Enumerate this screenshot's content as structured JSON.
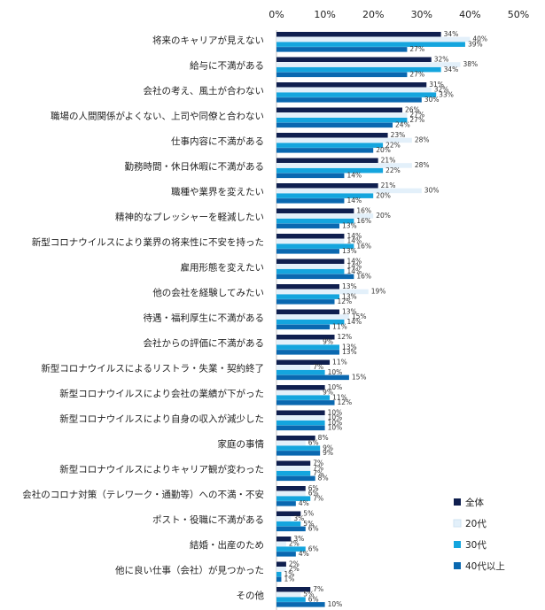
{
  "chart_data": {
    "type": "bar",
    "orientation": "horizontal",
    "xlim": [
      0,
      50
    ],
    "x_ticks": [
      "0%",
      "10%",
      "20%",
      "30%",
      "40%",
      "50%"
    ],
    "grid": false,
    "legend_position": "bottom-right",
    "categories": [
      "将来のキャリアが見えない",
      "給与に不満がある",
      "会社の考え、風土が合わない",
      "職場の人間関係がよくない、上司や同僚と合わない",
      "仕事内容に不満がある",
      "勤務時間・休日休暇に不満がある",
      "職種や業界を変えたい",
      "精神的なプレッシャーを軽減したい",
      "新型コロナウイルスにより業界の将来性に不安を持った",
      "雇用形態を変えたい",
      "他の会社を経験してみたい",
      "待遇・福利厚生に不満がある",
      "会社からの評価に不満がある",
      "新型コロナウイルスによるリストラ・失業・契約終了",
      "新型コロナウイルスにより会社の業績が下がった",
      "新型コロナウイルスにより自身の収入が減少した",
      "家庭の事情",
      "新型コロナウイルスによりキャリア観が変わった",
      "会社のコロナ対策（テレワーク・通勤等）への不満・不安",
      "ポスト・役職に不満がある",
      "結婚・出産のため",
      "他に良い仕事（会社）が見つかった",
      "その他"
    ],
    "series": [
      {
        "name": "全体",
        "color": "#0f1f4f",
        "values": [
          34,
          32,
          31,
          26,
          23,
          21,
          21,
          16,
          14,
          14,
          13,
          13,
          12,
          11,
          10,
          10,
          8,
          7,
          6,
          5,
          3,
          2,
          7
        ]
      },
      {
        "name": "20代",
        "color": "#e3f0fa",
        "values": [
          40,
          38,
          32,
          27,
          28,
          28,
          30,
          20,
          14,
          14,
          19,
          15,
          9,
          7,
          9,
          10,
          6,
          7,
          6,
          3,
          2,
          2,
          5
        ]
      },
      {
        "name": "30代",
        "color": "#14a5de",
        "values": [
          39,
          34,
          33,
          27,
          22,
          22,
          20,
          16,
          16,
          14,
          13,
          14,
          13,
          10,
          11,
          10,
          9,
          7,
          7,
          5,
          6,
          1,
          6
        ]
      },
      {
        "name": "40代以上",
        "color": "#0a68b0",
        "values": [
          27,
          27,
          30,
          24,
          20,
          14,
          14,
          13,
          13,
          16,
          12,
          11,
          13,
          15,
          12,
          10,
          9,
          8,
          4,
          6,
          4,
          1,
          10
        ]
      }
    ],
    "value_suffix": "%"
  }
}
